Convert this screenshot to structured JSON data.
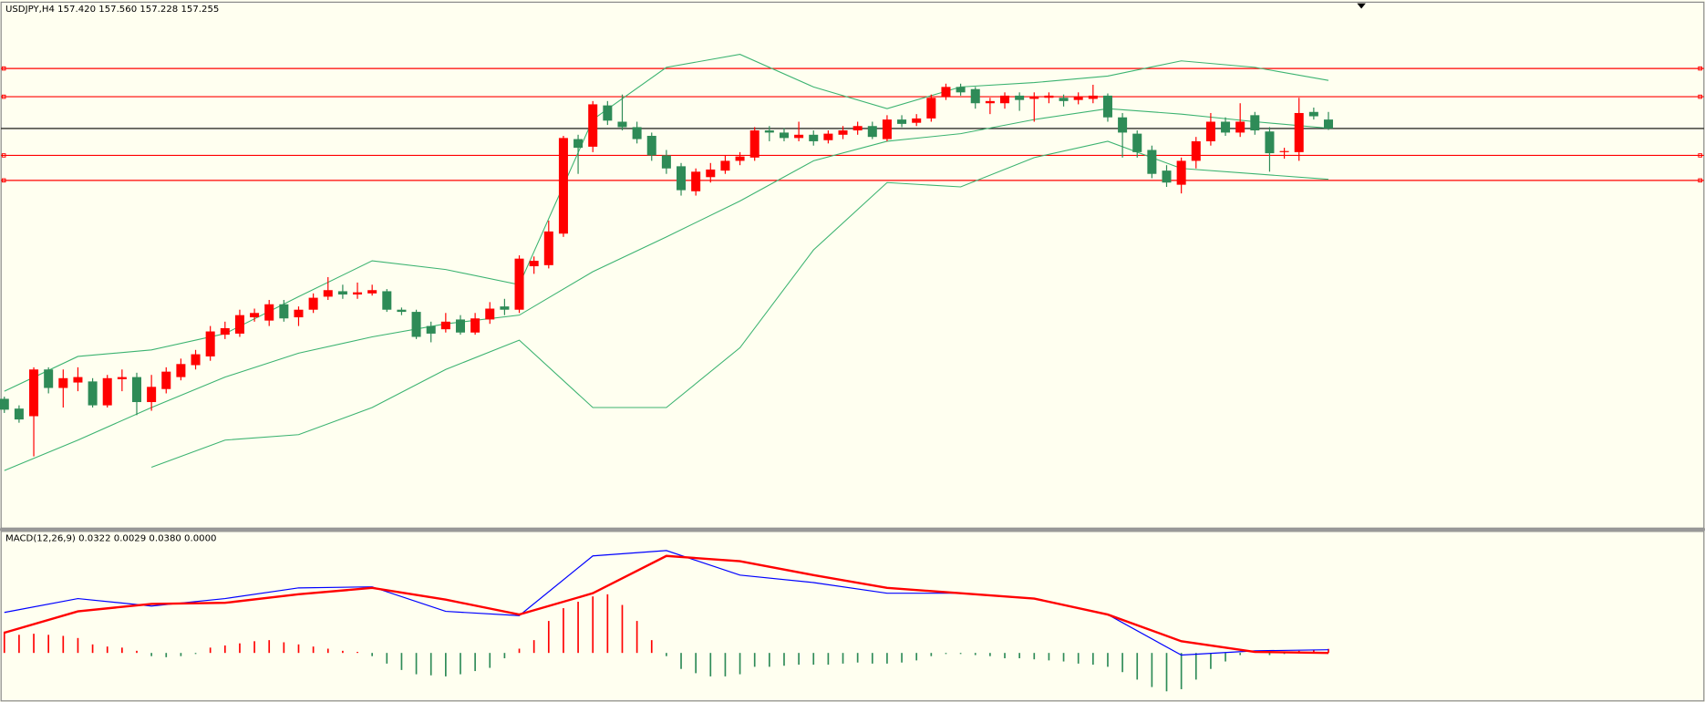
{
  "chart_data": [
    {
      "type": "candlestick",
      "title": "USDJPY,H4  157.420 157.560 157.228 157.255",
      "open": [
        152.28,
        152.1,
        151.96,
        152.82,
        152.48,
        152.58,
        152.6,
        152.16,
        152.64,
        152.68,
        152.22,
        152.46,
        152.68,
        152.9,
        153.06,
        153.46,
        153.48,
        153.78,
        153.72,
        154.02,
        153.78,
        153.92,
        154.16,
        154.26,
        154.2,
        154.22,
        154.26,
        153.92,
        153.88,
        153.62,
        153.56,
        153.74,
        153.5,
        153.74,
        153.98,
        153.92,
        154.72,
        154.74,
        155.32,
        157.06,
        156.92,
        157.68,
        157.38,
        157.28,
        157.12,
        156.76,
        156.56,
        156.1,
        156.36,
        156.48,
        156.66,
        156.72,
        157.22,
        157.18,
        157.08,
        157.14,
        157.04,
        157.14,
        157.22,
        157.3,
        157.06,
        157.42,
        157.36,
        157.44,
        157.84,
        158.02,
        157.98,
        157.72,
        157.72,
        157.86,
        157.8,
        157.82,
        157.82,
        157.78,
        157.8,
        157.86,
        157.46,
        157.16,
        156.86,
        156.48,
        156.22,
        156.66,
        157.02,
        157.38,
        157.18,
        157.5,
        157.2,
        156.82,
        156.82,
        157.56,
        157.42
      ],
      "high": [
        152.32,
        152.16,
        152.86,
        152.86,
        152.82,
        152.86,
        152.66,
        152.72,
        152.82,
        152.76,
        152.72,
        152.86,
        153.02,
        153.18,
        153.62,
        153.7,
        153.92,
        153.94,
        154.1,
        154.1,
        153.98,
        154.22,
        154.52,
        154.38,
        154.42,
        154.38,
        154.3,
        153.96,
        153.92,
        153.7,
        153.86,
        153.82,
        153.86,
        154.06,
        154.12,
        154.92,
        154.9,
        155.56,
        157.12,
        157.14,
        157.76,
        157.76,
        157.88,
        157.38,
        157.18,
        156.86,
        156.62,
        156.52,
        156.62,
        156.76,
        156.82,
        157.28,
        157.3,
        157.26,
        157.38,
        157.22,
        157.22,
        157.3,
        157.38,
        157.38,
        157.5,
        157.5,
        157.52,
        157.88,
        158.08,
        158.08,
        158.02,
        157.82,
        157.92,
        157.92,
        157.92,
        157.92,
        157.88,
        157.92,
        158.06,
        157.9,
        157.54,
        157.22,
        156.94,
        156.58,
        156.72,
        157.1,
        157.54,
        157.46,
        157.72,
        157.56,
        157.28,
        156.9,
        157.82,
        157.64,
        157.56
      ],
      "low": [
        152.02,
        151.84,
        151.22,
        152.38,
        152.12,
        152.42,
        152.12,
        152.12,
        152.42,
        151.98,
        152.06,
        152.38,
        152.62,
        152.82,
        152.98,
        153.38,
        153.42,
        153.7,
        153.62,
        153.7,
        153.62,
        153.86,
        154.1,
        154.12,
        154.12,
        154.18,
        153.88,
        153.82,
        153.38,
        153.32,
        153.5,
        153.46,
        153.46,
        153.66,
        153.82,
        153.86,
        154.58,
        154.68,
        155.26,
        156.42,
        156.82,
        157.32,
        157.22,
        156.98,
        156.66,
        156.42,
        156.02,
        156.02,
        156.26,
        156.42,
        156.58,
        156.66,
        157.02,
        157.02,
        157.02,
        156.94,
        156.98,
        157.06,
        157.14,
        157.06,
        157.02,
        157.28,
        157.3,
        157.38,
        157.78,
        157.86,
        157.62,
        157.52,
        157.62,
        157.58,
        157.38,
        157.72,
        157.66,
        157.7,
        157.72,
        157.38,
        156.72,
        156.72,
        156.34,
        156.18,
        156.06,
        156.52,
        156.94,
        157.12,
        157.1,
        157.14,
        156.46,
        156.7,
        156.66,
        157.42,
        157.228
      ],
      "close": [
        152.08,
        151.9,
        152.82,
        152.48,
        152.66,
        152.68,
        152.16,
        152.66,
        152.68,
        152.22,
        152.5,
        152.78,
        152.92,
        153.1,
        153.52,
        153.58,
        153.82,
        153.86,
        154.02,
        153.76,
        153.92,
        154.14,
        154.28,
        154.2,
        154.24,
        154.28,
        153.92,
        153.88,
        153.42,
        153.48,
        153.7,
        153.5,
        153.76,
        153.94,
        153.92,
        154.86,
        154.82,
        155.36,
        157.08,
        156.9,
        157.7,
        157.4,
        157.28,
        157.06,
        156.76,
        156.52,
        156.12,
        156.46,
        156.5,
        156.66,
        156.74,
        157.22,
        157.18,
        157.08,
        157.14,
        157.02,
        157.16,
        157.22,
        157.3,
        157.1,
        157.42,
        157.34,
        157.44,
        157.82,
        158.02,
        157.92,
        157.72,
        157.76,
        157.86,
        157.78,
        157.84,
        157.86,
        157.76,
        157.84,
        157.86,
        157.46,
        157.18,
        156.82,
        156.42,
        156.26,
        156.66,
        157.02,
        157.38,
        157.18,
        157.38,
        157.22,
        156.8,
        156.84,
        157.54,
        157.48,
        157.255
      ],
      "up_color": "#ff0000",
      "down_color": "#2e8b57",
      "ylim": [
        149.92,
        159.62
      ],
      "bands": {
        "x": [
          0,
          5,
          10,
          15,
          20,
          25,
          30,
          35,
          40,
          45,
          50,
          55,
          60,
          65,
          70,
          75,
          80,
          85,
          90
        ],
        "color": "#3cb371",
        "series": [
          {
            "values": [
              152.42,
              153.06,
              153.18,
              153.48,
              154.16,
              154.82,
              154.66,
              154.38,
              157.42,
              158.38,
              158.62,
              158.02,
              157.62,
              158.02,
              158.1,
              158.22,
              158.5,
              158.38,
              158.14
            ]
          },
          {
            "values": [
              150.96,
              151.52,
              152.12,
              152.68,
              153.12,
              153.42,
              153.66,
              153.82,
              154.62,
              155.26,
              155.92,
              156.66,
              157.02,
              157.16,
              157.42,
              157.62,
              157.52,
              157.38,
              157.26
            ]
          },
          {
            "values": [
              null,
              null,
              151.02,
              151.52,
              151.62,
              152.12,
              152.82,
              153.36,
              152.12,
              152.12,
              153.22,
              155.02,
              156.26,
              156.18,
              156.72,
              157.02,
              156.52,
              156.42,
              156.32
            ]
          }
        ]
      },
      "levels": [
        158.36,
        157.84,
        156.76,
        156.3
      ],
      "level_color": "#ff0000",
      "last_price_color": "#000000"
    },
    {
      "type": "macd",
      "title": "MACD(12,26,9) 0.0322 0.0029 0.0380 0.0000",
      "ylim": [
        -0.45,
        1.14
      ],
      "histogram": [
        0.2,
        0.17,
        0.18,
        0.17,
        0.16,
        0.14,
        0.08,
        0.06,
        0.05,
        0.02,
        -0.03,
        -0.04,
        -0.03,
        -0.01,
        0.05,
        0.07,
        0.09,
        0.11,
        0.12,
        0.1,
        0.08,
        0.06,
        0.04,
        0.02,
        0.01,
        -0.03,
        -0.1,
        -0.16,
        -0.2,
        -0.21,
        -0.22,
        -0.2,
        -0.17,
        -0.14,
        -0.05,
        0.04,
        0.12,
        0.3,
        0.42,
        0.48,
        0.53,
        0.55,
        0.45,
        0.3,
        0.12,
        -0.03,
        -0.15,
        -0.19,
        -0.22,
        -0.22,
        -0.2,
        -0.13,
        -0.13,
        -0.12,
        -0.11,
        -0.11,
        -0.11,
        -0.1,
        -0.09,
        -0.1,
        -0.1,
        -0.09,
        -0.07,
        -0.03,
        -0.01,
        -0.01,
        -0.02,
        -0.03,
        -0.05,
        -0.05,
        -0.06,
        -0.07,
        -0.08,
        -0.1,
        -0.11,
        -0.13,
        -0.18,
        -0.25,
        -0.32,
        -0.36,
        -0.34,
        -0.25,
        -0.15,
        -0.08,
        -0.02,
        0.0,
        -0.02,
        -0.01,
        0.02,
        0.03,
        0.038
      ],
      "up_color": "#ff0000",
      "down_color": "#2e8b57",
      "x": [
        0,
        5,
        10,
        15,
        20,
        25,
        30,
        35,
        40,
        45,
        50,
        55,
        60,
        65,
        70,
        75,
        80,
        85,
        90
      ],
      "series": [
        {
          "color": "#0000ff",
          "values": [
            0.38,
            0.51,
            0.44,
            0.51,
            0.61,
            0.62,
            0.39,
            0.35,
            0.91,
            0.96,
            0.73,
            0.66,
            0.56,
            0.56,
            0.51,
            0.36,
            -0.02,
            0.02,
            0.03
          ]
        },
        {
          "color": "#ff0000",
          "values": [
            0.19,
            0.39,
            0.46,
            0.47,
            0.55,
            0.61,
            0.5,
            0.36,
            0.56,
            0.91,
            0.86,
            0.73,
            0.61,
            0.56,
            0.51,
            0.36,
            0.11,
            0.01,
            0.0
          ]
        }
      ]
    }
  ]
}
